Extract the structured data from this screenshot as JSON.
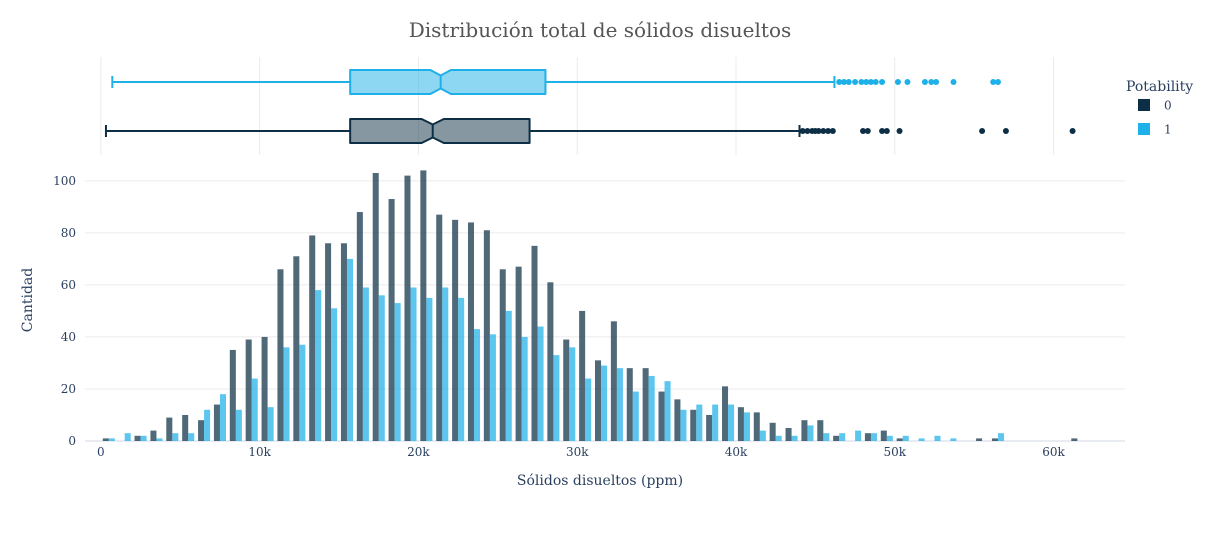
{
  "chart_data": {
    "type": "bar",
    "subtype": "histogram with marginal notched box plots",
    "title": "Distribución total de sólidos disueltos",
    "xlabel": "Sólidos disueltos (ppm)",
    "ylabel": "Cantidad",
    "xlim": [
      -1000,
      64500
    ],
    "ylim": [
      0,
      108
    ],
    "x_ticks": [
      0,
      10000,
      20000,
      30000,
      40000,
      50000,
      60000
    ],
    "x_tick_labels": [
      "0",
      "10k",
      "20k",
      "30k",
      "40k",
      "50k",
      "60k"
    ],
    "y_ticks": [
      0,
      20,
      40,
      60,
      80,
      100
    ],
    "y_tick_labels": [
      "0",
      "20",
      "40",
      "60",
      "80",
      "100"
    ],
    "grid": true,
    "legend_title": "Potability",
    "legend_position": "right",
    "bin_width": 1000,
    "bin_starts": [
      0,
      1000,
      2000,
      3000,
      4000,
      5000,
      6000,
      7000,
      8000,
      9000,
      10000,
      11000,
      12000,
      13000,
      14000,
      15000,
      16000,
      17000,
      18000,
      19000,
      20000,
      21000,
      22000,
      23000,
      24000,
      25000,
      26000,
      27000,
      28000,
      29000,
      30000,
      31000,
      32000,
      33000,
      34000,
      35000,
      36000,
      37000,
      38000,
      39000,
      40000,
      41000,
      42000,
      43000,
      44000,
      45000,
      46000,
      47000,
      48000,
      49000,
      50000,
      51000,
      52000,
      53000,
      54000,
      55000,
      56000,
      57000,
      58000,
      59000,
      60000,
      61000
    ],
    "series": [
      {
        "name": "0",
        "color": "#0d2f45",
        "values": [
          1,
          0,
          2,
          4,
          9,
          10,
          8,
          14,
          35,
          39,
          40,
          66,
          71,
          79,
          76,
          76,
          88,
          103,
          93,
          102,
          104,
          87,
          85,
          84,
          81,
          66,
          67,
          75,
          61,
          39,
          50,
          31,
          46,
          28,
          28,
          19,
          16,
          12,
          10,
          21,
          13,
          11,
          7,
          5,
          8,
          8,
          2,
          0,
          3,
          4,
          1,
          0,
          0,
          0,
          0,
          1,
          1,
          0,
          0,
          0,
          0,
          1
        ],
        "box": {
          "min": 320,
          "q1": 15700,
          "median": 20900,
          "q3": 27000,
          "max": 44000,
          "notch_half_width": 700,
          "outliers": [
            44200,
            44500,
            44800,
            45000,
            45200,
            45500,
            45800,
            46100,
            48000,
            48300,
            49200,
            49500,
            50300,
            55500,
            57000,
            61200
          ]
        }
      },
      {
        "name": "1",
        "color": "#1eb0e8",
        "values": [
          1,
          3,
          2,
          1,
          3,
          3,
          12,
          18,
          12,
          24,
          13,
          36,
          37,
          58,
          51,
          70,
          59,
          56,
          53,
          59,
          55,
          59,
          55,
          43,
          41,
          50,
          40,
          44,
          33,
          36,
          24,
          29,
          28,
          19,
          25,
          23,
          12,
          14,
          14,
          14,
          11,
          4,
          2,
          2,
          6,
          3,
          3,
          4,
          3,
          2,
          2,
          1,
          2,
          1,
          0,
          0,
          3,
          0,
          0,
          0,
          0,
          0
        ],
        "box": {
          "min": 720,
          "q1": 15700,
          "median": 21400,
          "q3": 28000,
          "max": 46200,
          "notch_half_width": 650,
          "outliers": [
            46500,
            46800,
            47100,
            47500,
            47900,
            48200,
            48500,
            48800,
            49200,
            50200,
            50800,
            51900,
            52300,
            52600,
            53700,
            56200,
            56500
          ]
        }
      }
    ]
  }
}
